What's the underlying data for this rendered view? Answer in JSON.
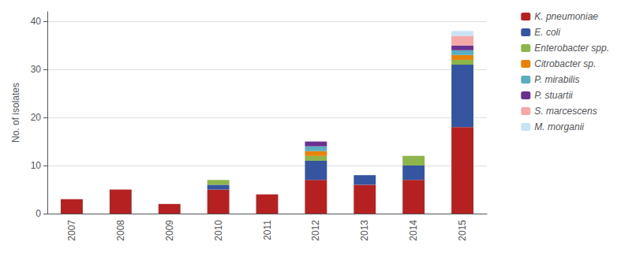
{
  "chart_data": {
    "type": "bar",
    "stacked": true,
    "categories": [
      "2007",
      "2008",
      "2009",
      "2010",
      "2011",
      "2012",
      "2013",
      "2014",
      "2015"
    ],
    "series": [
      {
        "name": "K. pneumoniae",
        "color": "#B52020",
        "values": [
          3,
          5,
          2,
          5,
          4,
          7,
          6,
          7,
          18
        ]
      },
      {
        "name": "E. coli",
        "color": "#3555A0",
        "values": [
          0,
          0,
          0,
          1,
          0,
          4,
          2,
          3,
          13
        ]
      },
      {
        "name": "Enterobacter spp.",
        "color": "#8DB54B",
        "values": [
          0,
          0,
          0,
          1,
          0,
          1,
          0,
          2,
          1
        ]
      },
      {
        "name": "Citrobacter sp.",
        "color": "#E8820A",
        "values": [
          0,
          0,
          0,
          0,
          0,
          1,
          0,
          0,
          1
        ]
      },
      {
        "name": "P. mirabilis",
        "color": "#5BAEC0",
        "values": [
          0,
          0,
          0,
          0,
          0,
          1,
          0,
          0,
          1
        ]
      },
      {
        "name": "P. stuartii",
        "color": "#6A3090",
        "values": [
          0,
          0,
          0,
          0,
          0,
          1,
          0,
          0,
          1
        ]
      },
      {
        "name": "S. marcescens",
        "color": "#F4A8A8",
        "values": [
          0,
          0,
          0,
          0,
          0,
          0,
          0,
          0,
          2
        ]
      },
      {
        "name": "M. morganii",
        "color": "#C8E4F4",
        "values": [
          0,
          0,
          0,
          0,
          0,
          0,
          0,
          0,
          1
        ]
      }
    ],
    "ylabel": "No. of isolates",
    "ylim": [
      0,
      42
    ],
    "yticks": [
      0,
      10,
      20,
      30,
      40
    ],
    "grid": true,
    "legend": "right"
  }
}
